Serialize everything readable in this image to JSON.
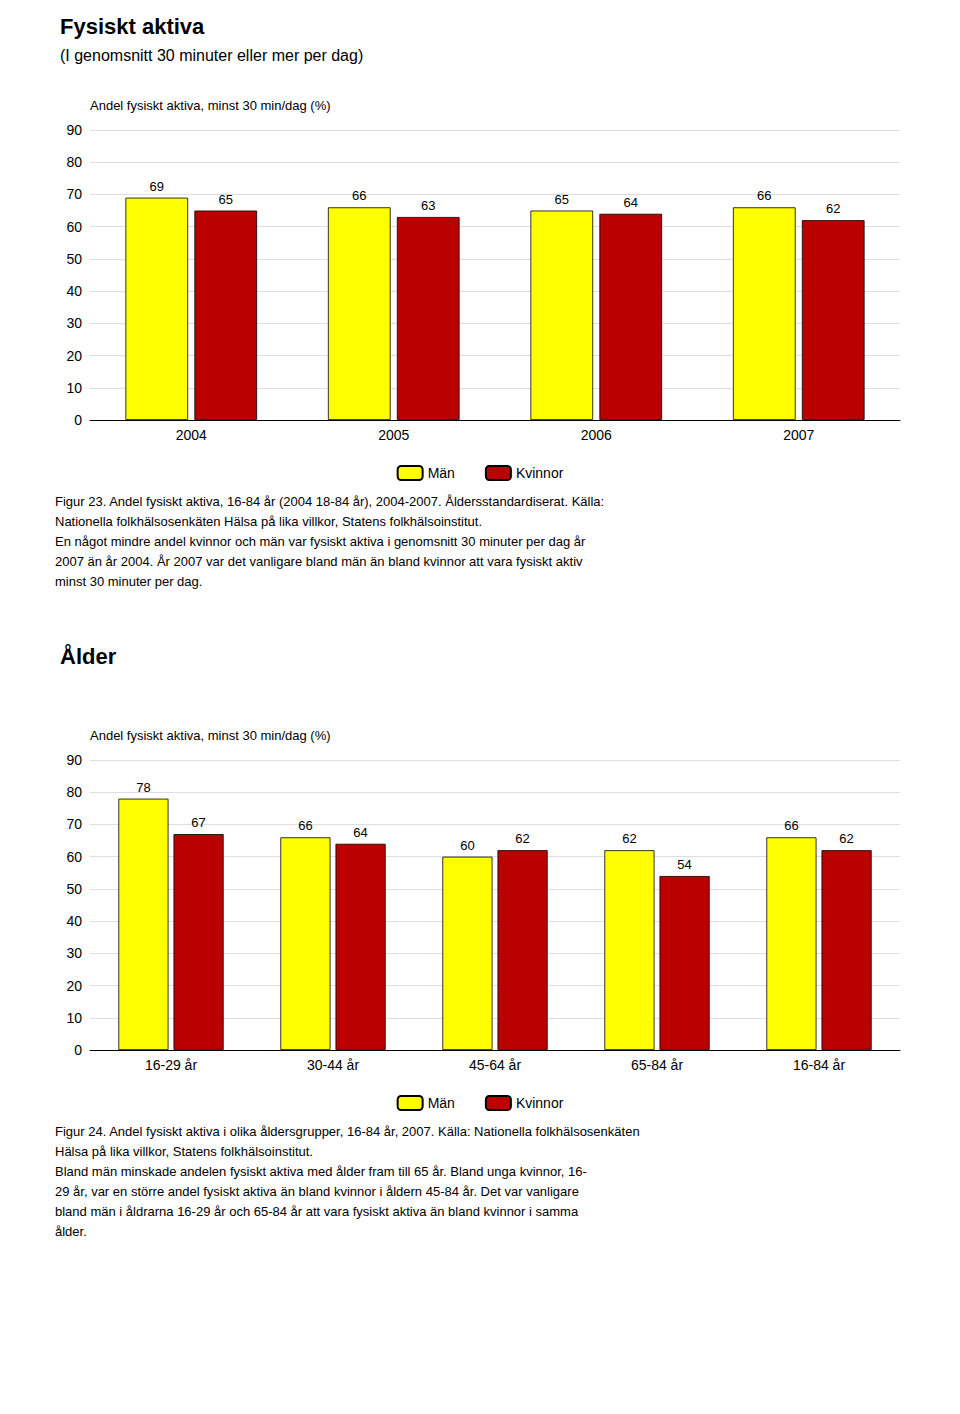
{
  "chart_data": [
    {
      "type": "bar",
      "title": "Fysiskt aktiva",
      "subtitle": "(I genomsnitt 30 minuter eller mer per dag)",
      "ylabel": "Andel fysiskt aktiva, minst 30 min/dag (%)",
      "categories": [
        "2004",
        "2005",
        "2006",
        "2007"
      ],
      "series": [
        {
          "name": "Män",
          "color": "#FFFF00",
          "values": [
            69,
            66,
            65,
            66
          ]
        },
        {
          "name": "Kvinnor",
          "color": "#BB0000",
          "values": [
            65,
            63,
            64,
            62
          ]
        }
      ],
      "ylim": [
        0,
        90
      ],
      "yticks": [
        0,
        10,
        20,
        30,
        40,
        50,
        60,
        70,
        80,
        90
      ],
      "grid": true,
      "legend": "bottom",
      "data_labels": true,
      "annotations": [
        "Figur 23. Andel fysiskt aktiva, 16-84 år (2004 18-84 år), 2004-2007. Åldersstandardiserat. Källa:",
        "Nationella folkhälsosenkäten Hälsa på lika villkor, Statens folkhälsoinstitut.",
        "En något mindre andel kvinnor och män var fysiskt aktiva i genomsnitt 30 minuter per dag år",
        "2007 än år 2004. År 2007 var det vanligare bland män än bland kvinnor att vara fysiskt aktiv",
        "minst 30 minuter per dag."
      ]
    },
    {
      "type": "bar",
      "title": "Ålder",
      "ylabel": "Andel fysiskt aktiva, minst 30 min/dag (%)",
      "categories": [
        "16-29 år",
        "30-44 år",
        "45-64 år",
        "65-84 år",
        "16-84 år"
      ],
      "series": [
        {
          "name": "Män",
          "color": "#FFFF00",
          "values": [
            78,
            66,
            60,
            62,
            66
          ]
        },
        {
          "name": "Kvinnor",
          "color": "#BB0000",
          "values": [
            67,
            64,
            62,
            54,
            62
          ]
        }
      ],
      "ylim": [
        0,
        90
      ],
      "yticks": [
        0,
        10,
        20,
        30,
        40,
        50,
        60,
        70,
        80,
        90
      ],
      "grid": true,
      "legend": "bottom",
      "data_labels": true,
      "annotations": [
        "Figur 24. Andel fysiskt aktiva i olika åldersgrupper, 16-84 år, 2007. Källa: Nationella folkhälsosenkäten",
        "Hälsa på lika villkor, Statens folkhälsoinstitut.",
        "Bland män minskade andelen fysiskt aktiva med ålder fram till 65 år. Bland unga kvinnor, 16-",
        "29 år, var en större andel fysiskt aktiva än bland kvinnor i åldern 45-84 år. Det var vanligare",
        "bland män i åldrarna 16-29 år och 65-84 år att vara fysiskt aktiva än bland kvinnor i samma",
        "ålder."
      ]
    }
  ]
}
